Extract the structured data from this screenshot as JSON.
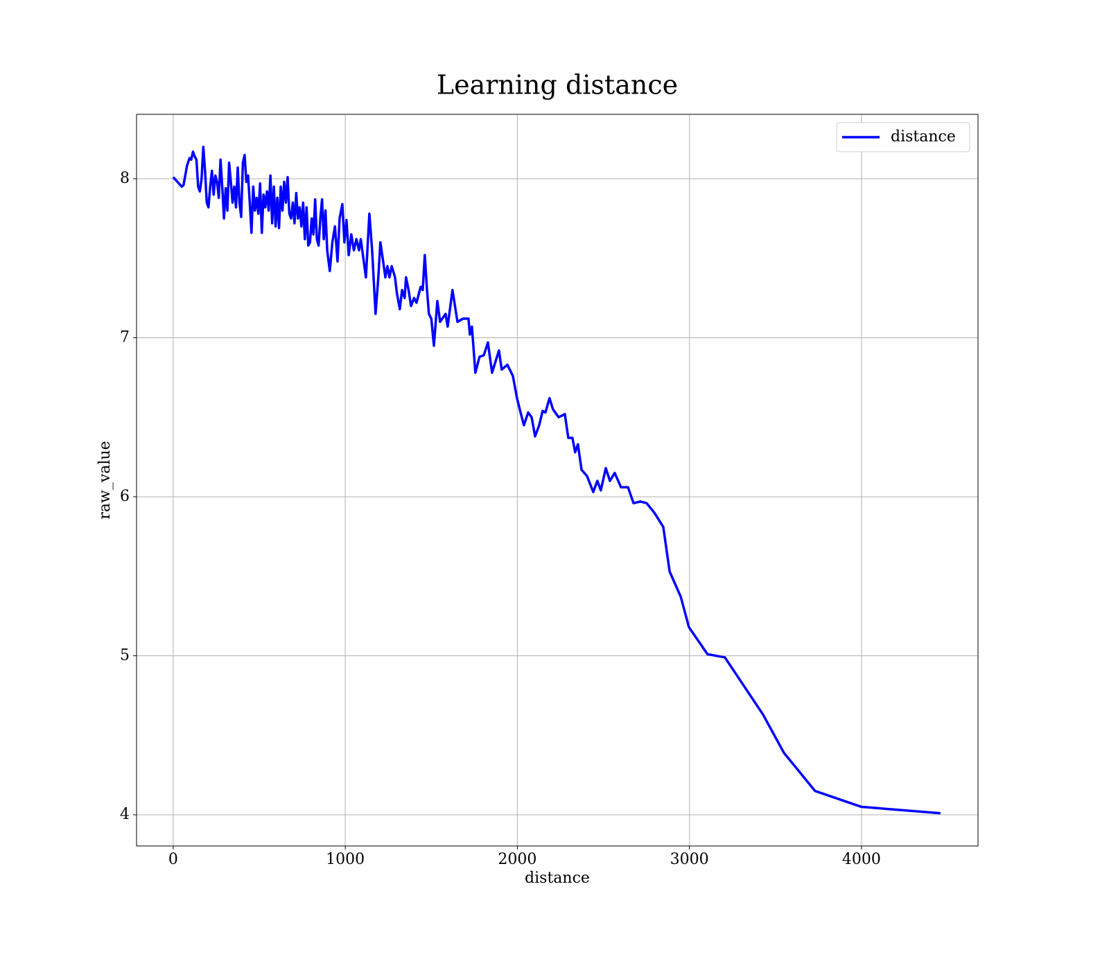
{
  "chart_data": {
    "type": "line",
    "title": "Learning distance",
    "x_label": "distance",
    "y_label": "raw_value",
    "x": [
      0,
      25,
      50,
      60,
      80,
      95,
      105,
      115,
      125,
      135,
      145,
      155,
      165,
      175,
      185,
      195,
      205,
      215,
      225,
      235,
      245,
      255,
      265,
      275,
      285,
      295,
      305,
      315,
      325,
      335,
      345,
      355,
      365,
      375,
      385,
      395,
      405,
      415,
      425,
      435,
      445,
      455,
      465,
      475,
      485,
      495,
      505,
      515,
      525,
      535,
      545,
      555,
      565,
      575,
      585,
      595,
      605,
      615,
      625,
      635,
      645,
      655,
      665,
      675,
      685,
      695,
      705,
      715,
      725,
      735,
      745,
      755,
      765,
      775,
      785,
      795,
      805,
      815,
      825,
      835,
      845,
      855,
      865,
      875,
      885,
      895,
      910,
      925,
      940,
      955,
      967,
      983,
      995,
      1007,
      1020,
      1035,
      1050,
      1065,
      1080,
      1090,
      1105,
      1120,
      1140,
      1156,
      1176,
      1192,
      1204,
      1220,
      1233,
      1245,
      1257,
      1270,
      1289,
      1300,
      1317,
      1330,
      1345,
      1353,
      1368,
      1382,
      1400,
      1414,
      1438,
      1450,
      1462,
      1475,
      1486,
      1500,
      1515,
      1535,
      1551,
      1583,
      1595,
      1623,
      1652,
      1684,
      1716,
      1724,
      1736,
      1756,
      1780,
      1805,
      1829,
      1853,
      1893,
      1909,
      1942,
      1974,
      1998,
      2014,
      2038,
      2063,
      2083,
      2103,
      2127,
      2147,
      2163,
      2187,
      2207,
      2240,
      2276,
      2296,
      2320,
      2336,
      2352,
      2373,
      2405,
      2441,
      2465,
      2485,
      2514,
      2538,
      2566,
      2602,
      2643,
      2675,
      2715,
      2751,
      2796,
      2848,
      2885,
      2950,
      2997,
      3105,
      3206,
      3428,
      3549,
      3730,
      4000,
      4459
    ],
    "series": [
      {
        "name": "distance",
        "color": "#0000ff",
        "values": [
          8.01,
          7.98,
          7.95,
          7.96,
          8.08,
          8.13,
          8.12,
          8.17,
          8.14,
          8.12,
          7.95,
          7.92,
          8.0,
          8.2,
          8.05,
          7.85,
          7.82,
          7.95,
          8.05,
          7.9,
          8.02,
          7.98,
          7.88,
          8.12,
          7.95,
          7.75,
          7.94,
          7.8,
          8.1,
          7.98,
          7.85,
          7.95,
          7.82,
          8.07,
          7.85,
          7.76,
          8.1,
          8.15,
          7.98,
          8.02,
          7.85,
          7.66,
          7.95,
          7.8,
          7.88,
          7.78,
          7.97,
          7.66,
          7.9,
          7.82,
          7.92,
          7.8,
          8.02,
          7.72,
          7.95,
          7.7,
          7.88,
          7.69,
          7.95,
          7.8,
          7.98,
          7.85,
          8.01,
          7.78,
          7.75,
          7.85,
          7.72,
          7.91,
          7.75,
          7.82,
          7.7,
          7.85,
          7.62,
          7.82,
          7.58,
          7.6,
          7.75,
          7.65,
          7.87,
          7.62,
          7.58,
          7.75,
          7.87,
          7.62,
          7.8,
          7.55,
          7.42,
          7.6,
          7.7,
          7.48,
          7.75,
          7.84,
          7.6,
          7.74,
          7.52,
          7.65,
          7.55,
          7.62,
          7.55,
          7.62,
          7.5,
          7.38,
          7.78,
          7.55,
          7.15,
          7.38,
          7.6,
          7.48,
          7.38,
          7.45,
          7.38,
          7.45,
          7.38,
          7.28,
          7.18,
          7.3,
          7.25,
          7.38,
          7.3,
          7.2,
          7.25,
          7.22,
          7.32,
          7.3,
          7.52,
          7.3,
          7.15,
          7.12,
          6.95,
          7.23,
          7.1,
          7.15,
          7.07,
          7.3,
          7.1,
          7.12,
          7.12,
          7.02,
          7.07,
          6.78,
          6.88,
          6.89,
          6.97,
          6.78,
          6.92,
          6.8,
          6.83,
          6.76,
          6.62,
          6.55,
          6.45,
          6.53,
          6.5,
          6.38,
          6.45,
          6.54,
          6.53,
          6.62,
          6.55,
          6.5,
          6.52,
          6.37,
          6.37,
          6.28,
          6.33,
          6.17,
          6.13,
          6.03,
          6.1,
          6.04,
          6.18,
          6.1,
          6.15,
          6.06,
          6.06,
          5.96,
          5.97,
          5.96,
          5.9,
          5.81,
          5.53,
          5.37,
          5.18,
          5.01,
          4.99,
          4.63,
          4.39,
          4.15,
          4.05,
          4.01
        ]
      }
    ],
    "xlim": [
      -213,
      4677
    ],
    "ylim": [
      3.804,
      8.405
    ],
    "xticks": [
      0,
      1000,
      2000,
      3000,
      4000
    ],
    "yticks": [
      4,
      5,
      6,
      7,
      8
    ],
    "grid": true,
    "legend": "upper right"
  }
}
